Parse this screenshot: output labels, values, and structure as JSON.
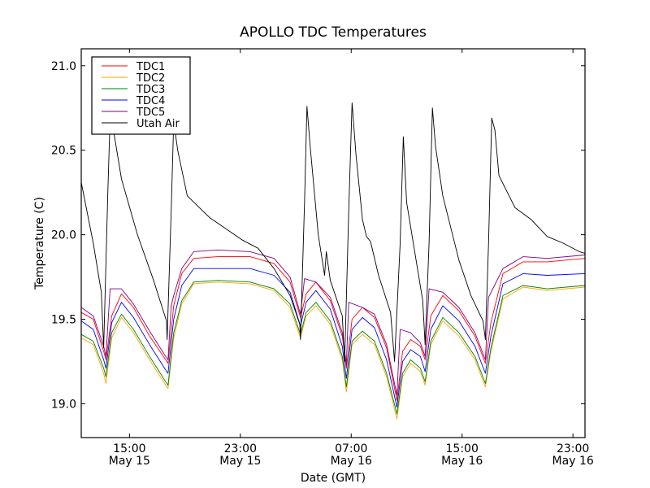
{
  "chart_data": {
    "type": "line",
    "title": "APOLLO TDC Temperatures",
    "xlabel": "Date (GMT)",
    "ylabel": "Temperature (C)",
    "x_units": "hours since 00:00 May 15 (GMT)",
    "xlim": [
      11.52,
      47.87
    ],
    "ylim": [
      18.8,
      21.1
    ],
    "grid": false,
    "legend_position": "top-left",
    "x_ticks": [
      {
        "value": 15,
        "label_time": "15:00",
        "label_date": "May 15"
      },
      {
        "value": 23,
        "label_time": "23:00",
        "label_date": "May 15"
      },
      {
        "value": 31,
        "label_time": "07:00",
        "label_date": "May 16"
      },
      {
        "value": 39,
        "label_time": "15:00",
        "label_date": "May 16"
      },
      {
        "value": 47,
        "label_time": "23:00",
        "label_date": "May 16"
      }
    ],
    "y_ticks": [
      {
        "value": 19.0,
        "label": "19.0"
      },
      {
        "value": 19.5,
        "label": "19.5"
      },
      {
        "value": 20.0,
        "label": "20.0"
      },
      {
        "value": 20.5,
        "label": "20.5"
      },
      {
        "value": 21.0,
        "label": "21.0"
      }
    ],
    "series": [
      {
        "name": "TDC1",
        "color": "#ff0000",
        "x": [
          11.52,
          12.39,
          13.14,
          13.3,
          13.72,
          14.42,
          15.29,
          16.45,
          17.61,
          17.78,
          18.19,
          18.77,
          19.64,
          21.38,
          23.7,
          25.43,
          26.59,
          27.34,
          27.75,
          28.45,
          29.49,
          30.36,
          30.65,
          31.06,
          31.81,
          32.68,
          33.55,
          34.3,
          34.71,
          35.29,
          35.99,
          36.33,
          36.74,
          37.61,
          38.77,
          39.93,
          40.68,
          41.08,
          41.95,
          43.4,
          45.14,
          47.87
        ],
        "y": [
          19.54,
          19.5,
          19.31,
          19.26,
          19.52,
          19.65,
          19.57,
          19.4,
          19.26,
          19.24,
          19.58,
          19.77,
          19.86,
          19.87,
          19.87,
          19.83,
          19.72,
          19.51,
          19.65,
          19.72,
          19.61,
          19.4,
          19.21,
          19.5,
          19.57,
          19.51,
          19.33,
          19.02,
          19.31,
          19.38,
          19.34,
          19.26,
          19.52,
          19.64,
          19.55,
          19.4,
          19.24,
          19.48,
          19.77,
          19.84,
          19.84,
          19.86
        ]
      },
      {
        "name": "TDC2",
        "color": "#ffa500",
        "x": [
          11.52,
          12.39,
          13.14,
          13.3,
          13.72,
          14.42,
          15.29,
          16.45,
          17.61,
          17.78,
          18.19,
          18.77,
          19.64,
          21.38,
          23.7,
          25.43,
          26.59,
          27.34,
          27.75,
          28.45,
          29.49,
          30.36,
          30.65,
          31.06,
          31.81,
          32.68,
          33.55,
          34.3,
          34.71,
          35.29,
          35.99,
          36.33,
          36.74,
          37.61,
          38.77,
          39.93,
          40.68,
          41.08,
          41.95,
          43.4,
          45.14,
          47.87
        ],
        "y": [
          19.39,
          19.35,
          19.18,
          19.12,
          19.39,
          19.51,
          19.42,
          19.26,
          19.11,
          19.09,
          19.39,
          19.59,
          19.71,
          19.72,
          19.71,
          19.67,
          19.57,
          19.39,
          19.52,
          19.58,
          19.47,
          19.26,
          19.07,
          19.35,
          19.41,
          19.35,
          19.16,
          18.91,
          19.16,
          19.24,
          19.19,
          19.11,
          19.35,
          19.49,
          19.4,
          19.26,
          19.1,
          19.31,
          19.62,
          19.69,
          19.67,
          19.69
        ]
      },
      {
        "name": "TDC3",
        "color": "#008000",
        "x": [
          11.52,
          12.39,
          13.14,
          13.3,
          13.72,
          14.42,
          15.29,
          16.45,
          17.61,
          17.78,
          18.19,
          18.77,
          19.64,
          21.38,
          23.7,
          25.43,
          26.59,
          27.34,
          27.75,
          28.45,
          29.49,
          30.36,
          30.65,
          31.06,
          31.81,
          32.68,
          33.55,
          34.3,
          34.71,
          35.29,
          35.99,
          36.33,
          36.74,
          37.61,
          38.77,
          39.93,
          40.68,
          41.08,
          41.95,
          43.4,
          45.14,
          47.87
        ],
        "y": [
          19.41,
          19.37,
          19.21,
          19.16,
          19.42,
          19.53,
          19.44,
          19.28,
          19.13,
          19.11,
          19.42,
          19.61,
          19.72,
          19.73,
          19.72,
          19.68,
          19.59,
          19.41,
          19.54,
          19.6,
          19.49,
          19.28,
          19.1,
          19.37,
          19.43,
          19.37,
          19.18,
          18.94,
          19.18,
          19.26,
          19.21,
          19.13,
          19.37,
          19.51,
          19.42,
          19.28,
          19.12,
          19.33,
          19.64,
          19.7,
          19.68,
          19.7
        ]
      },
      {
        "name": "TDC4",
        "color": "#0000ff",
        "x": [
          11.52,
          12.39,
          13.14,
          13.3,
          13.72,
          14.42,
          15.29,
          16.45,
          17.61,
          17.78,
          18.19,
          18.77,
          19.64,
          21.38,
          23.7,
          25.43,
          26.59,
          27.34,
          27.75,
          28.45,
          29.49,
          30.36,
          30.65,
          31.06,
          31.81,
          32.68,
          33.55,
          34.3,
          34.71,
          35.29,
          35.99,
          36.33,
          36.74,
          37.61,
          38.77,
          39.93,
          40.68,
          41.08,
          41.95,
          43.4,
          45.14,
          47.87
        ],
        "y": [
          19.49,
          19.44,
          19.26,
          19.21,
          19.48,
          19.6,
          19.51,
          19.35,
          19.2,
          19.18,
          19.5,
          19.7,
          19.8,
          19.8,
          19.8,
          19.76,
          19.66,
          19.46,
          19.6,
          19.67,
          19.56,
          19.34,
          19.15,
          19.44,
          19.51,
          19.45,
          19.26,
          18.98,
          19.25,
          19.32,
          19.28,
          19.19,
          19.44,
          19.58,
          19.49,
          19.34,
          19.18,
          19.4,
          19.71,
          19.77,
          19.76,
          19.77
        ]
      },
      {
        "name": "TDC5",
        "color": "#800080",
        "x": [
          11.52,
          12.39,
          13.14,
          13.3,
          13.6,
          13.72,
          14.42,
          15.29,
          16.45,
          17.61,
          17.78,
          18.01,
          18.19,
          18.77,
          19.64,
          21.38,
          23.7,
          25.43,
          26.59,
          27.34,
          27.63,
          28.45,
          29.49,
          30.36,
          30.65,
          30.82,
          31.81,
          32.68,
          33.55,
          34.3,
          34.53,
          35.29,
          35.99,
          36.33,
          36.62,
          37.61,
          38.77,
          39.93,
          40.68,
          40.91,
          41.95,
          43.4,
          45.14,
          47.87
        ],
        "y": [
          19.57,
          19.52,
          19.34,
          19.28,
          19.68,
          19.68,
          19.68,
          19.59,
          19.43,
          19.28,
          19.26,
          19.58,
          19.64,
          19.8,
          19.9,
          19.91,
          19.9,
          19.86,
          19.75,
          19.53,
          19.74,
          19.72,
          19.63,
          19.42,
          19.23,
          19.6,
          19.57,
          19.53,
          19.35,
          19.05,
          19.44,
          19.42,
          19.36,
          19.28,
          19.68,
          19.66,
          19.57,
          19.42,
          19.26,
          19.63,
          19.8,
          19.87,
          19.86,
          19.88
        ]
      },
      {
        "name": "Utah Air",
        "color": "#000000",
        "x": [
          11.52,
          12.39,
          12.97,
          13.14,
          13.43,
          13.6,
          13.84,
          14.42,
          15.58,
          16.74,
          17.67,
          17.72,
          18.01,
          18.19,
          18.48,
          19.17,
          20.8,
          23.11,
          24.27,
          25.43,
          26.59,
          27.29,
          27.34,
          27.63,
          27.81,
          28.04,
          28.62,
          29.08,
          29.2,
          29.49,
          30.36,
          30.53,
          30.82,
          31.06,
          31.35,
          31.81,
          32.1,
          32.39,
          32.97,
          33.84,
          34.13,
          34.53,
          34.76,
          35.0,
          35.58,
          36.16,
          36.33,
          36.62,
          36.86,
          37.09,
          37.61,
          38.19,
          38.77,
          39.64,
          40.51,
          40.68,
          40.91,
          41.14,
          41.37,
          41.66,
          42.82,
          43.98,
          45.14,
          46.3,
          47.46,
          47.87
        ],
        "y": [
          20.31,
          19.95,
          19.66,
          19.33,
          20.23,
          20.69,
          20.62,
          20.33,
          20.0,
          19.73,
          19.49,
          19.38,
          20.14,
          20.67,
          20.5,
          20.23,
          20.1,
          19.97,
          19.92,
          19.8,
          19.64,
          19.47,
          19.38,
          20.19,
          20.76,
          20.52,
          20.0,
          19.76,
          19.9,
          19.73,
          19.52,
          19.25,
          20.14,
          20.78,
          20.47,
          20.09,
          19.99,
          19.96,
          19.76,
          19.54,
          19.25,
          19.95,
          20.58,
          20.19,
          19.9,
          19.61,
          19.35,
          19.95,
          20.75,
          20.52,
          20.23,
          20.04,
          19.85,
          19.64,
          19.49,
          19.38,
          19.95,
          20.69,
          20.62,
          20.35,
          20.16,
          20.09,
          19.99,
          19.95,
          19.9,
          19.89
        ]
      }
    ]
  }
}
